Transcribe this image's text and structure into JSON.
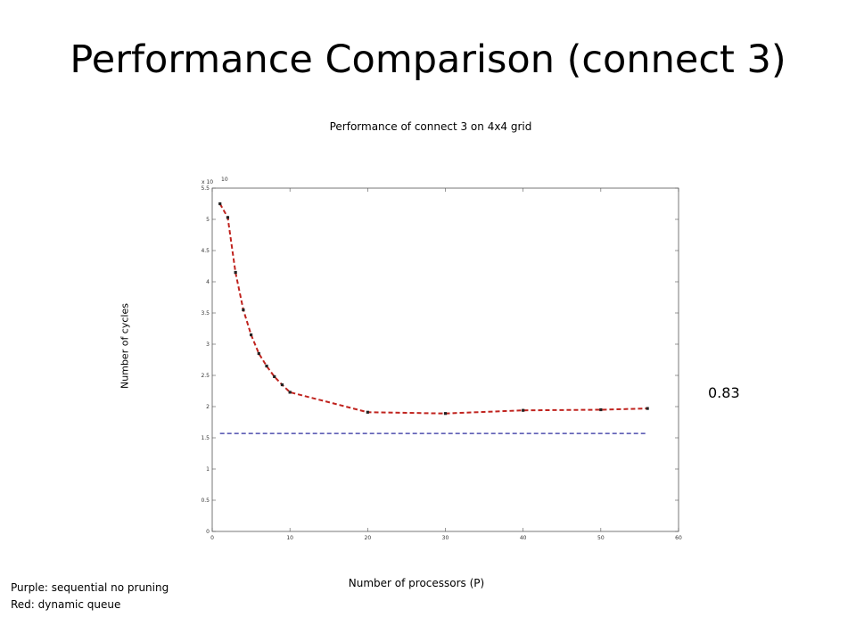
{
  "slide": {
    "title": "Performance Comparison (connect 3)",
    "ratio_label": "0.83",
    "notes": [
      "Purple: sequential no pruning",
      "Red:  dynamic queue"
    ]
  },
  "chart_data": {
    "type": "line",
    "title": "Performance of connect 3 on 4x4 grid",
    "xlabel": "Number of processors (P)",
    "ylabel": "Number of cycles",
    "y_exponent_label": "x 10",
    "y_exponent": "10",
    "xlim": [
      0,
      60
    ],
    "ylim": [
      0,
      5.5
    ],
    "x_ticks": [
      0,
      10,
      20,
      30,
      40,
      50,
      60
    ],
    "y_ticks": [
      0,
      0.5,
      1,
      1.5,
      2,
      2.5,
      3,
      3.5,
      4,
      4.5,
      5,
      5.5
    ],
    "grid": false,
    "series": [
      {
        "color": "#c0231e",
        "dash": true,
        "markers": true,
        "x": [
          1,
          2,
          3,
          4,
          5,
          6,
          7,
          8,
          9,
          10,
          20,
          30,
          40,
          50,
          56
        ],
        "y": [
          5.25,
          5.03,
          4.15,
          3.55,
          3.15,
          2.85,
          2.65,
          2.48,
          2.35,
          2.23,
          1.91,
          1.89,
          1.94,
          1.95,
          1.97
        ]
      },
      {
        "color": "#2b2b9e",
        "dash": true,
        "markers": false,
        "x": [
          1,
          56
        ],
        "y": [
          1.57,
          1.57
        ]
      }
    ]
  }
}
